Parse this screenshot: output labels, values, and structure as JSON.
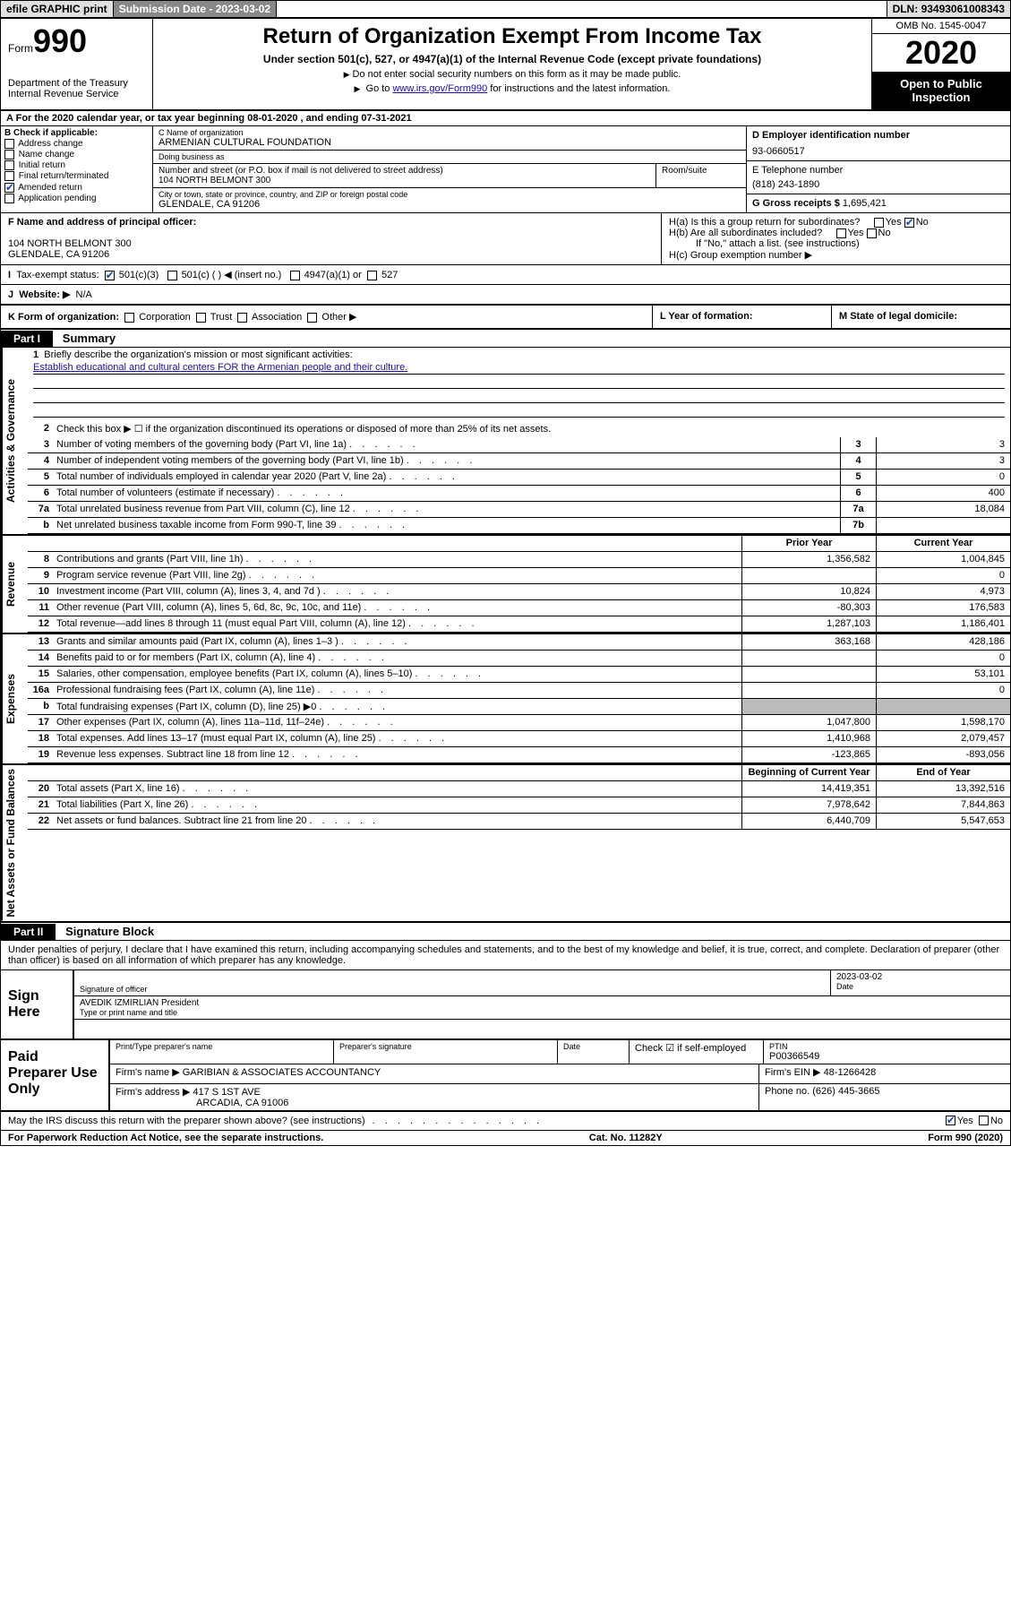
{
  "topbar": {
    "efile": "efile GRAPHIC print",
    "sub_label": "Submission Date - ",
    "sub_date": "2023-03-02",
    "dln_label": "DLN: ",
    "dln": "93493061008343"
  },
  "header": {
    "form_prefix": "Form",
    "form_no": "990",
    "dept": "Department of the Treasury\nInternal Revenue Service",
    "title": "Return of Organization Exempt From Income Tax",
    "subtitle": "Under section 501(c), 527, or 4947(a)(1) of the Internal Revenue Code (except private foundations)",
    "note1": "Do not enter social security numbers on this form as it may be made public.",
    "note2_pre": "Go to ",
    "note2_link": "www.irs.gov/Form990",
    "note2_post": " for instructions and the latest information.",
    "omb": "OMB No. 1545-0047",
    "year": "2020",
    "public": "Open to Public Inspection"
  },
  "period": {
    "text_pre": "For the 2020 calendar year, or tax year beginning ",
    "begin": "08-01-2020",
    "text_mid": " , and ending ",
    "end": "07-31-2021"
  },
  "sectionB": {
    "label": "B Check if applicable:",
    "items": [
      "Address change",
      "Name change",
      "Initial return",
      "Final return/terminated",
      "Amended return",
      "Application pending"
    ],
    "checked_idx": 4
  },
  "sectionC": {
    "name_lbl": "C Name of organization",
    "name": "ARMENIAN CULTURAL FOUNDATION",
    "dba_lbl": "Doing business as",
    "dba": "",
    "street_lbl": "Number and street (or P.O. box if mail is not delivered to street address)",
    "suite_lbl": "Room/suite",
    "street": "104 NORTH BELMONT 300",
    "city_lbl": "City or town, state or province, country, and ZIP or foreign postal code",
    "city": "GLENDALE, CA  91206"
  },
  "sectionD": {
    "lbl": "D Employer identification number",
    "val": "93-0660517"
  },
  "sectionE": {
    "lbl": "E Telephone number",
    "val": "(818) 243-1890"
  },
  "sectionG": {
    "lbl": "G Gross receipts $ ",
    "val": "1,695,421"
  },
  "sectionF": {
    "lbl": "F Name and address of principal officer:",
    "addr1": "104 NORTH BELMONT 300",
    "addr2": "GLENDALE, CA  91206"
  },
  "sectionH": {
    "a_lbl": "H(a)  Is this a group return for subordinates?",
    "a_yes": "Yes",
    "a_no": "No",
    "a_no_checked": true,
    "b_lbl": "H(b)  Are all subordinates included?",
    "b_yes": "Yes",
    "b_no": "No",
    "b_note": "If \"No,\" attach a list. (see instructions)",
    "c_lbl": "H(c)  Group exemption number ▶"
  },
  "sectionI": {
    "lbl": "Tax-exempt status:",
    "opts": [
      "501(c)(3)",
      "501(c) (  ) ◀ (insert no.)",
      "4947(a)(1) or",
      "527"
    ],
    "checked_idx": 0
  },
  "sectionJ": {
    "lbl": "Website: ▶",
    "val": "N/A"
  },
  "sectionK": {
    "lbl": "K Form of organization:",
    "opts": [
      "Corporation",
      "Trust",
      "Association",
      "Other ▶"
    ]
  },
  "sectionL": {
    "lbl": "L Year of formation:",
    "val": ""
  },
  "sectionM": {
    "lbl": "M State of legal domicile:",
    "val": ""
  },
  "part1": {
    "hdr": "Part I",
    "title": "Summary",
    "line1_lbl": "Briefly describe the organization's mission or most significant activities:",
    "line1_val": "Establish educational and cultural centers FOR the Armenian people and their culture.",
    "line2_lbl": "Check this box ▶ ☐  if the organization discontinued its operations or disposed of more than 25% of its net assets."
  },
  "sidelabels": {
    "gov": "Activities & Governance",
    "rev": "Revenue",
    "exp": "Expenses",
    "net": "Net Assets or Fund Balances"
  },
  "gov_lines": [
    {
      "no": "3",
      "desc": "Number of voting members of the governing body (Part VI, line 1a)",
      "nc": "3",
      "v": "3"
    },
    {
      "no": "4",
      "desc": "Number of independent voting members of the governing body (Part VI, line 1b)",
      "nc": "4",
      "v": "3"
    },
    {
      "no": "5",
      "desc": "Total number of individuals employed in calendar year 2020 (Part V, line 2a)",
      "nc": "5",
      "v": "0"
    },
    {
      "no": "6",
      "desc": "Total number of volunteers (estimate if necessary)",
      "nc": "6",
      "v": "400"
    },
    {
      "no": "7a",
      "desc": "Total unrelated business revenue from Part VIII, column (C), line 12",
      "nc": "7a",
      "v": "18,084"
    },
    {
      "no": "b",
      "desc": "Net unrelated business taxable income from Form 990-T, line 39",
      "nc": "7b",
      "v": ""
    }
  ],
  "colhdr": {
    "py": "Prior Year",
    "cy": "Current Year"
  },
  "rev_lines": [
    {
      "no": "8",
      "desc": "Contributions and grants (Part VIII, line 1h)",
      "py": "1,356,582",
      "cy": "1,004,845"
    },
    {
      "no": "9",
      "desc": "Program service revenue (Part VIII, line 2g)",
      "py": "",
      "cy": "0"
    },
    {
      "no": "10",
      "desc": "Investment income (Part VIII, column (A), lines 3, 4, and 7d )",
      "py": "10,824",
      "cy": "4,973"
    },
    {
      "no": "11",
      "desc": "Other revenue (Part VIII, column (A), lines 5, 6d, 8c, 9c, 10c, and 11e)",
      "py": "-80,303",
      "cy": "176,583"
    },
    {
      "no": "12",
      "desc": "Total revenue—add lines 8 through 11 (must equal Part VIII, column (A), line 12)",
      "py": "1,287,103",
      "cy": "1,186,401"
    }
  ],
  "exp_lines": [
    {
      "no": "13",
      "desc": "Grants and similar amounts paid (Part IX, column (A), lines 1–3 )",
      "py": "363,168",
      "cy": "428,186"
    },
    {
      "no": "14",
      "desc": "Benefits paid to or for members (Part IX, column (A), line 4)",
      "py": "",
      "cy": "0"
    },
    {
      "no": "15",
      "desc": "Salaries, other compensation, employee benefits (Part IX, column (A), lines 5–10)",
      "py": "",
      "cy": "53,101"
    },
    {
      "no": "16a",
      "desc": "Professional fundraising fees (Part IX, column (A), line 11e)",
      "py": "",
      "cy": "0"
    },
    {
      "no": "b",
      "desc": "Total fundraising expenses (Part IX, column (D), line 25) ▶0",
      "py": "SHADE",
      "cy": "SHADE"
    },
    {
      "no": "17",
      "desc": "Other expenses (Part IX, column (A), lines 11a–11d, 11f–24e)",
      "py": "1,047,800",
      "cy": "1,598,170"
    },
    {
      "no": "18",
      "desc": "Total expenses. Add lines 13–17 (must equal Part IX, column (A), line 25)",
      "py": "1,410,968",
      "cy": "2,079,457"
    },
    {
      "no": "19",
      "desc": "Revenue less expenses. Subtract line 18 from line 12",
      "py": "-123,865",
      "cy": "-893,056"
    }
  ],
  "net_hdr": {
    "py": "Beginning of Current Year",
    "cy": "End of Year"
  },
  "net_lines": [
    {
      "no": "20",
      "desc": "Total assets (Part X, line 16)",
      "py": "14,419,351",
      "cy": "13,392,516"
    },
    {
      "no": "21",
      "desc": "Total liabilities (Part X, line 26)",
      "py": "7,978,642",
      "cy": "7,844,863"
    },
    {
      "no": "22",
      "desc": "Net assets or fund balances. Subtract line 21 from line 20",
      "py": "6,440,709",
      "cy": "5,547,653"
    }
  ],
  "part2": {
    "hdr": "Part II",
    "title": "Signature Block",
    "decl": "Under penalties of perjury, I declare that I have examined this return, including accompanying schedules and statements, and to the best of my knowledge and belief, it is true, correct, and complete. Declaration of preparer (other than officer) is based on all information of which preparer has any knowledge."
  },
  "sign": {
    "here": "Sign Here",
    "sig_lbl": "Signature of officer",
    "date_lbl": "Date",
    "date_val": "2023-03-02",
    "name": "AVEDIK IZMIRLIAN  President",
    "name_lbl": "Type or print name and title"
  },
  "paid": {
    "here": "Paid Preparer Use Only",
    "prep_name_lbl": "Print/Type preparer's name",
    "prep_sig_lbl": "Preparer's signature",
    "date_lbl": "Date",
    "check_lbl": "Check ☑ if self-employed",
    "ptin_lbl": "PTIN",
    "ptin": "P00366549",
    "firm_name_lbl": "Firm's name    ▶",
    "firm_name": "GARIBIAN & ASSOCIATES ACCOUNTANCY",
    "firm_ein_lbl": "Firm's EIN ▶",
    "firm_ein": "48-1266428",
    "firm_addr_lbl": "Firm's address ▶",
    "firm_addr1": "417 S 1ST AVE",
    "firm_addr2": "ARCADIA, CA  91006",
    "phone_lbl": "Phone no.",
    "phone": "(626) 445-3665"
  },
  "discuss": {
    "q": "May the IRS discuss this return with the preparer shown above? (see instructions)",
    "yes": "Yes",
    "no": "No",
    "yes_checked": true
  },
  "footer": {
    "left": "For Paperwork Reduction Act Notice, see the separate instructions.",
    "mid": "Cat. No. 11282Y",
    "right": "Form 990 (2020)"
  },
  "colors": {
    "link": "#1a0dab",
    "check": "#1a4aab",
    "black": "#000000",
    "grey_bg": "#e0e0e0",
    "darkgrey": "#888888",
    "shade": "#bbbbbb"
  }
}
